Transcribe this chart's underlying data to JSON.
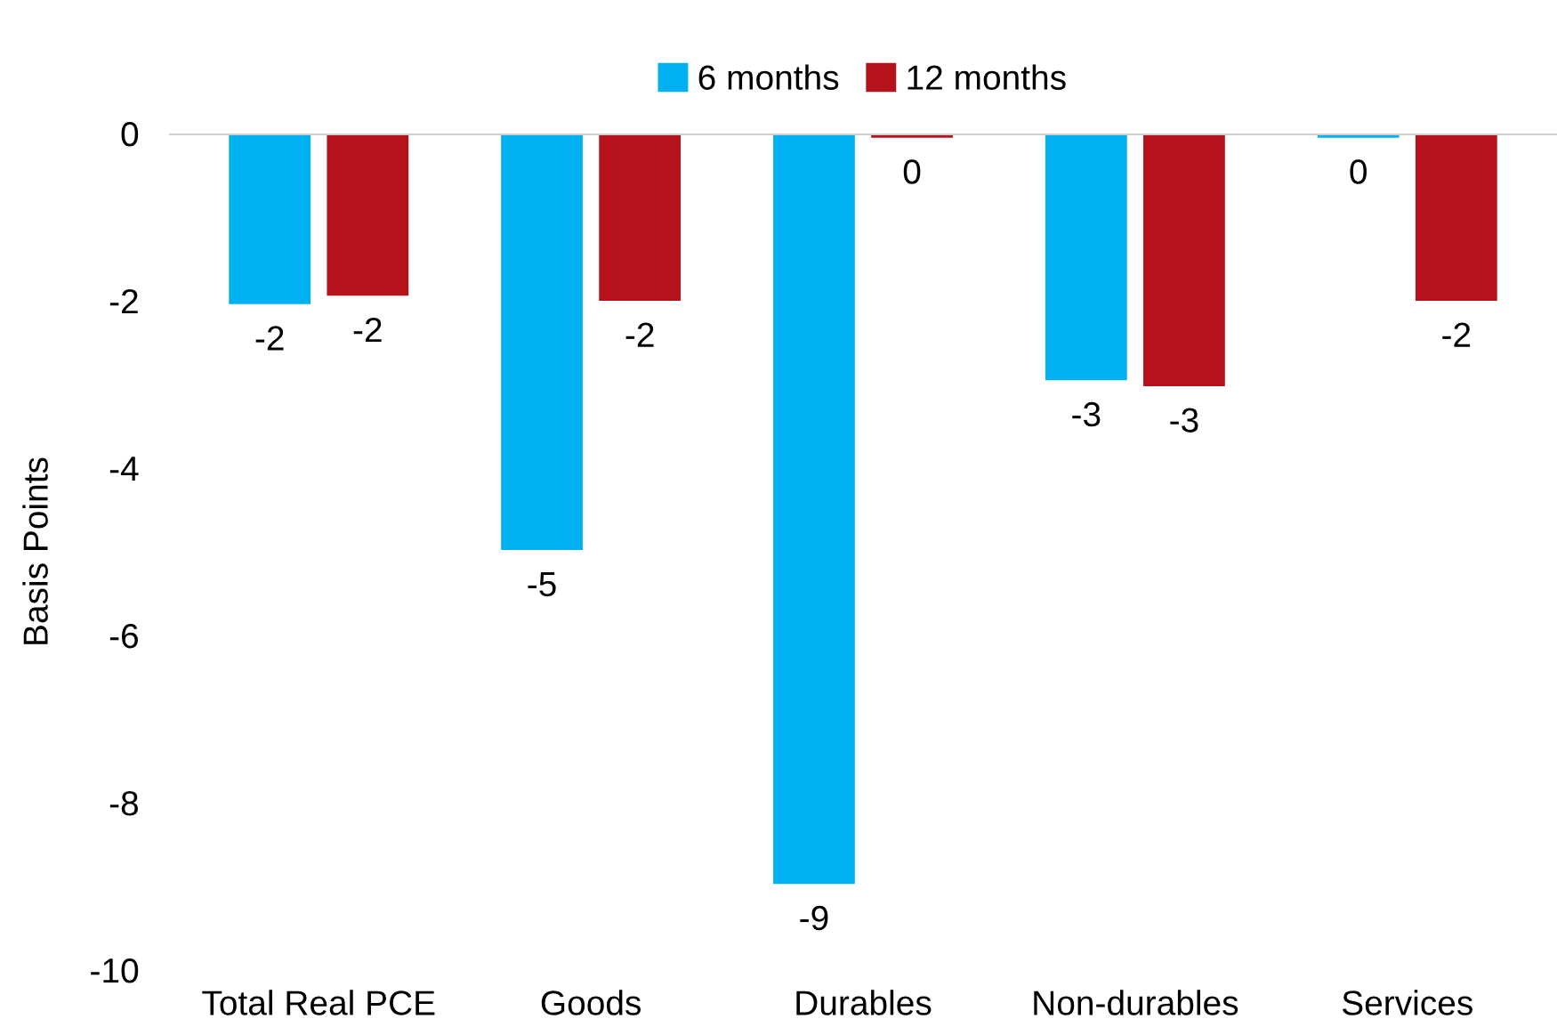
{
  "chart_data": {
    "type": "bar",
    "ylabel": "Basis Points",
    "categories": [
      "Total Real PCE",
      "Goods",
      "Durables",
      "Non-durables",
      "Services"
    ],
    "series": [
      {
        "name": "6 months",
        "color": "#00b0f0",
        "values": [
          -2.04,
          -4.98,
          -8.97,
          -2.95,
          -0.05
        ],
        "value_labels": [
          "-2",
          "-5",
          "-9",
          "-3",
          "0"
        ]
      },
      {
        "name": "12 months",
        "color": "#b5121b",
        "values": [
          -1.94,
          -2.0,
          -0.05,
          -3.02,
          -2.0
        ],
        "value_labels": [
          "-2",
          "-2",
          "0",
          "-3",
          "-2"
        ]
      }
    ],
    "ylim": [
      -10,
      0
    ],
    "yticks": [
      -10,
      -8,
      -6,
      -4,
      -2,
      0
    ],
    "grid": false,
    "legend": "top"
  }
}
